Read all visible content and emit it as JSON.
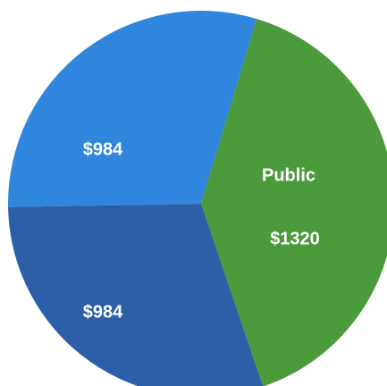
{
  "chart_data": {
    "type": "pie",
    "categories": [
      null,
      "Public",
      null
    ],
    "values": [
      984,
      1320,
      984
    ],
    "value_labels": [
      "$984",
      "$1320",
      "$984"
    ],
    "colors": [
      "#2f86dc",
      "#4b9a3b",
      "#2d5fa9"
    ]
  }
}
